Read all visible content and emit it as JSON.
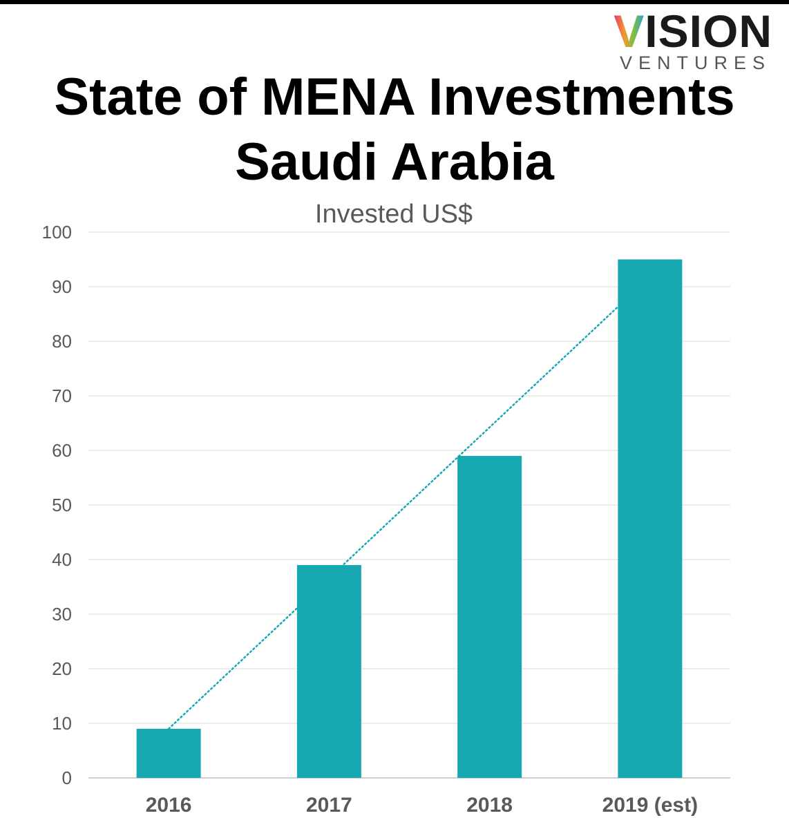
{
  "logo": {
    "brand_initial": "V",
    "brand_rest": "ISION",
    "subtitle": "VENTURES"
  },
  "header": {
    "title_line1": "State of MENA Investments",
    "title_line2": "Saudi Arabia"
  },
  "colors": {
    "bar": "#17a8b2",
    "trendline": "#17a8b2",
    "grid": "#d9d9d9",
    "axis_text": "#595959",
    "category_text": "#595959"
  },
  "chart_data": {
    "type": "bar",
    "title": "Invested US$",
    "xlabel": "",
    "ylabel": "",
    "categories": [
      "2016",
      "2017",
      "2018",
      "2019 (est)"
    ],
    "values": [
      9,
      39,
      59,
      95
    ],
    "ylim": [
      0,
      100
    ],
    "yticks": [
      "0",
      "10",
      "20",
      "30",
      "40",
      "50",
      "60",
      "70",
      "80",
      "90",
      "100"
    ],
    "grid": true,
    "legend": "none",
    "trendline": {
      "type": "linear",
      "style": "dotted",
      "start": 9,
      "end": 86.5
    }
  }
}
